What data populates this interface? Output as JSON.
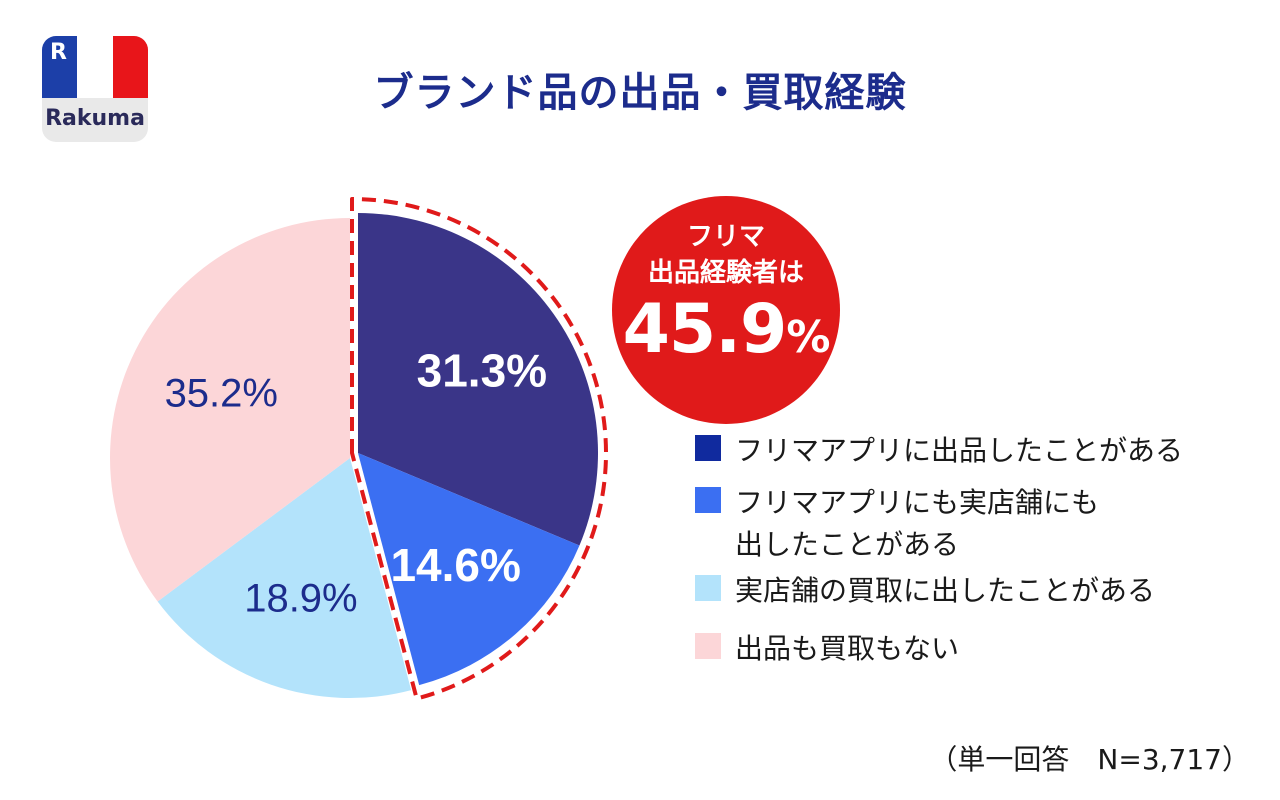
{
  "brand": {
    "name": "Rakuma",
    "mark": "R",
    "flag_colors": [
      "#1c3fa8",
      "#ffffff",
      "#e8151a"
    ]
  },
  "title": "ブランド品の出品・買取経験",
  "callout": {
    "line1": "フリマ",
    "line2": "出品経験者は",
    "value": "45.9",
    "unit": "%"
  },
  "footnote": "（単一回答　N=3,717）",
  "chart_data": {
    "type": "pie",
    "title": "ブランド品の出品・買取経験",
    "categories": [
      "フリマアプリに出品したことがある",
      "フリマアプリにも実店舗にも\n出したことがある",
      "実店舗の買取に出したことがある",
      "出品も買取もない"
    ],
    "values": [
      31.3,
      14.6,
      18.9,
      35.2
    ],
    "value_labels": [
      "31.3%",
      "14.6%",
      "18.9%",
      "35.2%"
    ],
    "colors": [
      "#3a3588",
      "#3b6ff2",
      "#b3e3fb",
      "#fcd6d8"
    ],
    "label_colors": [
      "#ffffff",
      "#ffffff",
      "#1c2c8c",
      "#1c2c8c"
    ],
    "highlight_color": "#e01a1a",
    "legend_colors": [
      "#102a9e",
      "#3b6ff2",
      "#b3e3fb",
      "#fcd6d8"
    ],
    "legend_position": "right"
  }
}
